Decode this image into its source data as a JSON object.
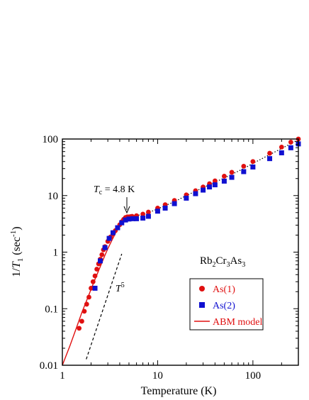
{
  "chart_data": {
    "type": "scatter",
    "x_scale": "log",
    "y_scale": "log",
    "xlim": [
      1,
      300
    ],
    "ylim": [
      0.01,
      100
    ],
    "grid": false,
    "xlabel": "Temperature (K)",
    "ylabel": {
      "pre": "1/",
      "sym": "T",
      "sub": "1",
      "post": " (sec",
      "sup": "-1",
      "end": ")"
    },
    "x_ticks": [
      1,
      10,
      100
    ],
    "x_tick_labels": [
      "1",
      "10",
      "100"
    ],
    "y_ticks": [
      0.01,
      0.1,
      1,
      10,
      100
    ],
    "y_tick_labels": [
      "0.01",
      "0.1",
      "1",
      "10",
      "100"
    ],
    "compound": {
      "p1": "Rb",
      "s1": "2",
      "p2": "Cr",
      "s2": "3",
      "p3": "As",
      "s3": "3"
    },
    "tc_annotation": {
      "sym": "T",
      "sub": "c",
      "text": " = 4.8 K",
      "x": 4.8
    },
    "t5_label": {
      "sym": "T",
      "sup": "5"
    },
    "legend_position": "lower-right",
    "series": [
      {
        "name": "As(1)",
        "marker": "circle",
        "color": "#e01010",
        "x": [
          1.5,
          1.6,
          1.7,
          1.8,
          1.9,
          2.0,
          2.1,
          2.2,
          2.3,
          2.4,
          2.5,
          2.6,
          2.7,
          2.8,
          3.0,
          3.2,
          3.4,
          3.6,
          3.8,
          4.0,
          4.2,
          4.4,
          4.6,
          4.8,
          5.0,
          5.2,
          5.4,
          6.0,
          7.0,
          8.0,
          10,
          12,
          15,
          20,
          25,
          30,
          35,
          40,
          50,
          60,
          80,
          100,
          150,
          200,
          250,
          300
        ],
        "y": [
          0.045,
          0.06,
          0.09,
          0.12,
          0.16,
          0.23,
          0.3,
          0.38,
          0.5,
          0.62,
          0.75,
          0.9,
          1.1,
          1.25,
          1.55,
          1.85,
          2.1,
          2.4,
          2.7,
          3.05,
          3.45,
          3.8,
          4.1,
          4.2,
          4.2,
          4.25,
          4.3,
          4.4,
          4.7,
          5.1,
          6.0,
          6.9,
          8.2,
          10.3,
          12.2,
          14.2,
          16.2,
          18.2,
          22.0,
          25.8,
          33.0,
          40.0,
          56.0,
          72.0,
          88.0,
          100.0
        ]
      },
      {
        "name": "As(2)",
        "marker": "square",
        "color": "#1010d0",
        "x": [
          2.2,
          2.5,
          2.8,
          3.1,
          3.4,
          3.8,
          4.2,
          4.6,
          5.0,
          5.5,
          6.0,
          7.0,
          8.0,
          10,
          12,
          15,
          20,
          25,
          30,
          35,
          40,
          50,
          60,
          80,
          100,
          150,
          200,
          250,
          300
        ],
        "y": [
          0.23,
          0.7,
          1.2,
          1.75,
          2.2,
          2.7,
          3.3,
          3.7,
          3.85,
          3.9,
          3.9,
          4.0,
          4.3,
          5.3,
          6.0,
          7.2,
          9.0,
          10.8,
          12.5,
          14.2,
          15.5,
          18.0,
          21.0,
          26.5,
          32.0,
          45.0,
          57.0,
          70.0,
          82.0
        ]
      },
      {
        "name": "ABM model",
        "marker": "line",
        "color": "#e01010",
        "x": [
          1.0,
          1.2,
          1.4,
          1.6,
          1.8,
          2.0,
          2.2,
          2.4,
          2.6,
          2.8,
          3.0,
          3.3,
          3.6,
          3.9,
          4.2,
          4.5,
          4.8
        ],
        "y": [
          0.01,
          0.022,
          0.045,
          0.085,
          0.14,
          0.22,
          0.33,
          0.47,
          0.65,
          0.88,
          1.15,
          1.6,
          2.15,
          2.75,
          3.35,
          3.85,
          4.2
        ]
      },
      {
        "name": "",
        "marker": "dotted",
        "color": "#000000",
        "x": [
          4.8,
          6,
          8,
          10,
          15,
          20,
          30,
          50,
          80,
          100,
          150,
          200,
          250,
          300
        ],
        "y": [
          4.2,
          4.4,
          5.0,
          5.8,
          7.8,
          10.0,
          13.8,
          20.5,
          30.0,
          37.0,
          53.0,
          68.0,
          83.0,
          98.0
        ]
      },
      {
        "name": "",
        "marker": "dashed",
        "color": "#000000",
        "x": [
          1.78,
          4.2
        ],
        "y": [
          0.0128,
          0.93
        ]
      }
    ]
  }
}
